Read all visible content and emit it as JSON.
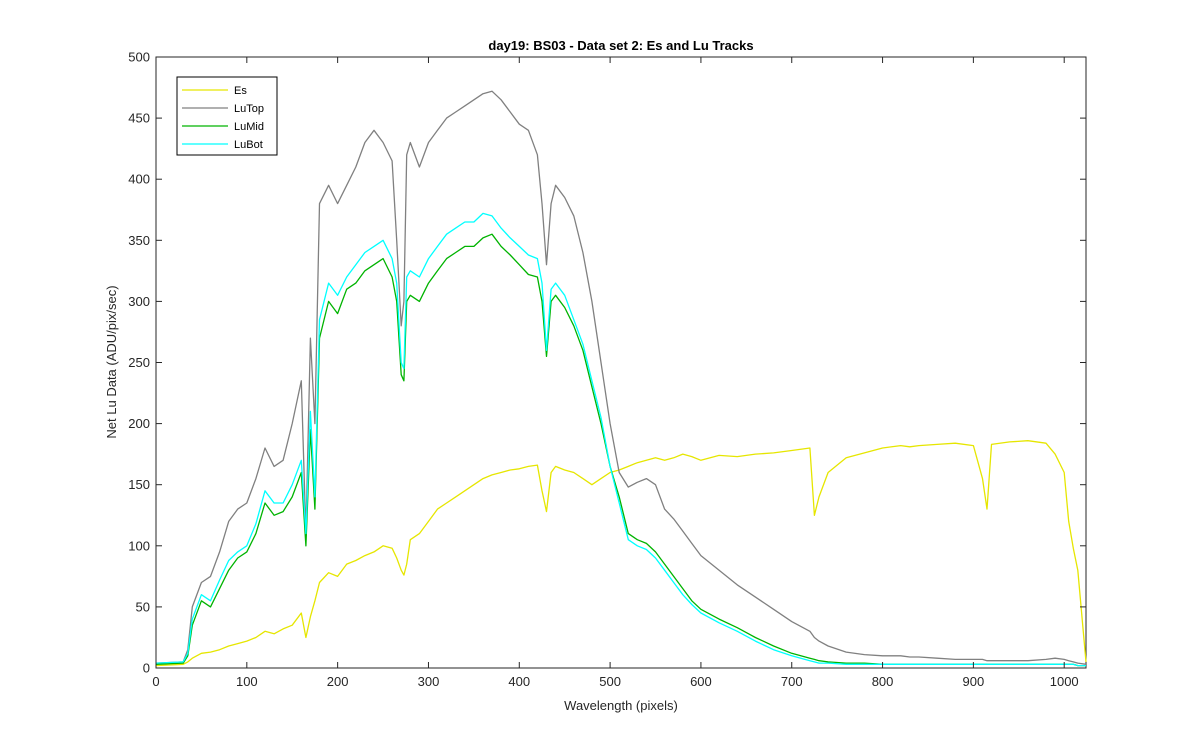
{
  "chart_data": {
    "type": "line",
    "title": "day19: BS03 - Data set 2: Es and Lu Tracks",
    "xlabel": "Wavelength (pixels)",
    "ylabel": "Net Lu Data (ADU/pix/sec)",
    "xlim": [
      0,
      1024
    ],
    "ylim": [
      0,
      500
    ],
    "xticks": [
      0,
      100,
      200,
      300,
      400,
      500,
      600,
      700,
      800,
      900,
      1000
    ],
    "yticks": [
      0,
      50,
      100,
      150,
      200,
      250,
      300,
      350,
      400,
      450,
      500
    ],
    "grid": false,
    "legend_position": "top-left",
    "x": [
      0,
      30,
      35,
      40,
      50,
      60,
      70,
      80,
      90,
      100,
      110,
      120,
      130,
      140,
      150,
      160,
      165,
      170,
      175,
      180,
      190,
      200,
      210,
      220,
      230,
      240,
      250,
      260,
      265,
      270,
      273,
      276,
      280,
      290,
      300,
      310,
      320,
      330,
      340,
      350,
      360,
      370,
      380,
      390,
      400,
      410,
      420,
      425,
      430,
      435,
      440,
      450,
      460,
      470,
      480,
      490,
      500,
      510,
      520,
      530,
      540,
      550,
      560,
      570,
      580,
      590,
      600,
      620,
      640,
      660,
      680,
      700,
      720,
      725,
      730,
      740,
      760,
      780,
      800,
      820,
      830,
      840,
      860,
      880,
      900,
      910,
      915,
      920,
      940,
      960,
      980,
      990,
      1000,
      1005,
      1010,
      1015,
      1024
    ],
    "series": [
      {
        "name": "Es",
        "color": "#e6e600",
        "values": [
          2,
          3,
          5,
          8,
          12,
          13,
          15,
          18,
          20,
          22,
          25,
          30,
          28,
          32,
          35,
          45,
          25,
          42,
          55,
          70,
          78,
          75,
          85,
          88,
          92,
          95,
          100,
          98,
          90,
          80,
          76,
          85,
          105,
          110,
          120,
          130,
          135,
          140,
          145,
          150,
          155,
          158,
          160,
          162,
          163,
          165,
          166,
          145,
          128,
          160,
          165,
          162,
          160,
          155,
          150,
          155,
          160,
          162,
          165,
          168,
          170,
          172,
          170,
          172,
          175,
          173,
          170,
          174,
          173,
          175,
          176,
          178,
          180,
          125,
          140,
          160,
          172,
          176,
          180,
          182,
          181,
          182,
          183,
          184,
          182,
          155,
          130,
          183,
          185,
          186,
          184,
          175,
          160,
          120,
          98,
          80,
          5
        ]
      },
      {
        "name": "LuTop",
        "color": "#808080",
        "values": [
          4,
          5,
          15,
          50,
          70,
          75,
          95,
          120,
          130,
          135,
          155,
          180,
          165,
          170,
          200,
          235,
          110,
          270,
          200,
          380,
          395,
          380,
          395,
          410,
          430,
          440,
          430,
          415,
          350,
          280,
          300,
          420,
          430,
          410,
          430,
          440,
          450,
          455,
          460,
          465,
          470,
          472,
          465,
          455,
          445,
          440,
          420,
          380,
          330,
          380,
          395,
          385,
          370,
          340,
          300,
          250,
          200,
          160,
          148,
          152,
          155,
          150,
          130,
          122,
          112,
          102,
          92,
          80,
          68,
          58,
          48,
          38,
          30,
          25,
          22,
          18,
          13,
          11,
          10,
          10,
          9,
          9,
          8,
          7,
          7,
          7,
          6,
          6,
          6,
          6,
          7,
          8,
          7,
          6,
          5,
          4,
          3
        ]
      },
      {
        "name": "LuMid",
        "color": "#00b300",
        "values": [
          3,
          4,
          10,
          35,
          55,
          50,
          65,
          80,
          90,
          95,
          110,
          135,
          125,
          128,
          140,
          160,
          100,
          195,
          130,
          270,
          300,
          290,
          310,
          315,
          325,
          330,
          335,
          320,
          300,
          240,
          235,
          300,
          305,
          300,
          315,
          325,
          335,
          340,
          345,
          345,
          352,
          355,
          345,
          338,
          330,
          322,
          320,
          300,
          255,
          300,
          305,
          295,
          280,
          260,
          230,
          200,
          165,
          140,
          110,
          105,
          102,
          95,
          85,
          75,
          65,
          55,
          48,
          40,
          33,
          25,
          18,
          12,
          8,
          7,
          6,
          5,
          4,
          4,
          3,
          3,
          3,
          3,
          3,
          3,
          3,
          3,
          3,
          3,
          3,
          3,
          3,
          3,
          3,
          3,
          3,
          2,
          2
        ]
      },
      {
        "name": "LuBot",
        "color": "#00ffff",
        "values": [
          4,
          5,
          12,
          40,
          60,
          55,
          72,
          88,
          95,
          100,
          118,
          145,
          135,
          135,
          150,
          170,
          110,
          210,
          140,
          285,
          315,
          305,
          320,
          330,
          340,
          345,
          350,
          335,
          315,
          250,
          245,
          320,
          325,
          320,
          335,
          345,
          355,
          360,
          365,
          365,
          372,
          370,
          360,
          352,
          345,
          338,
          335,
          315,
          260,
          310,
          315,
          305,
          285,
          265,
          235,
          205,
          165,
          135,
          105,
          100,
          97,
          90,
          80,
          70,
          60,
          52,
          45,
          37,
          30,
          22,
          15,
          10,
          6,
          5,
          4,
          4,
          3,
          3,
          3,
          3,
          3,
          3,
          3,
          3,
          3,
          3,
          3,
          3,
          3,
          3,
          3,
          3,
          3,
          3,
          3,
          2,
          2
        ]
      }
    ]
  }
}
